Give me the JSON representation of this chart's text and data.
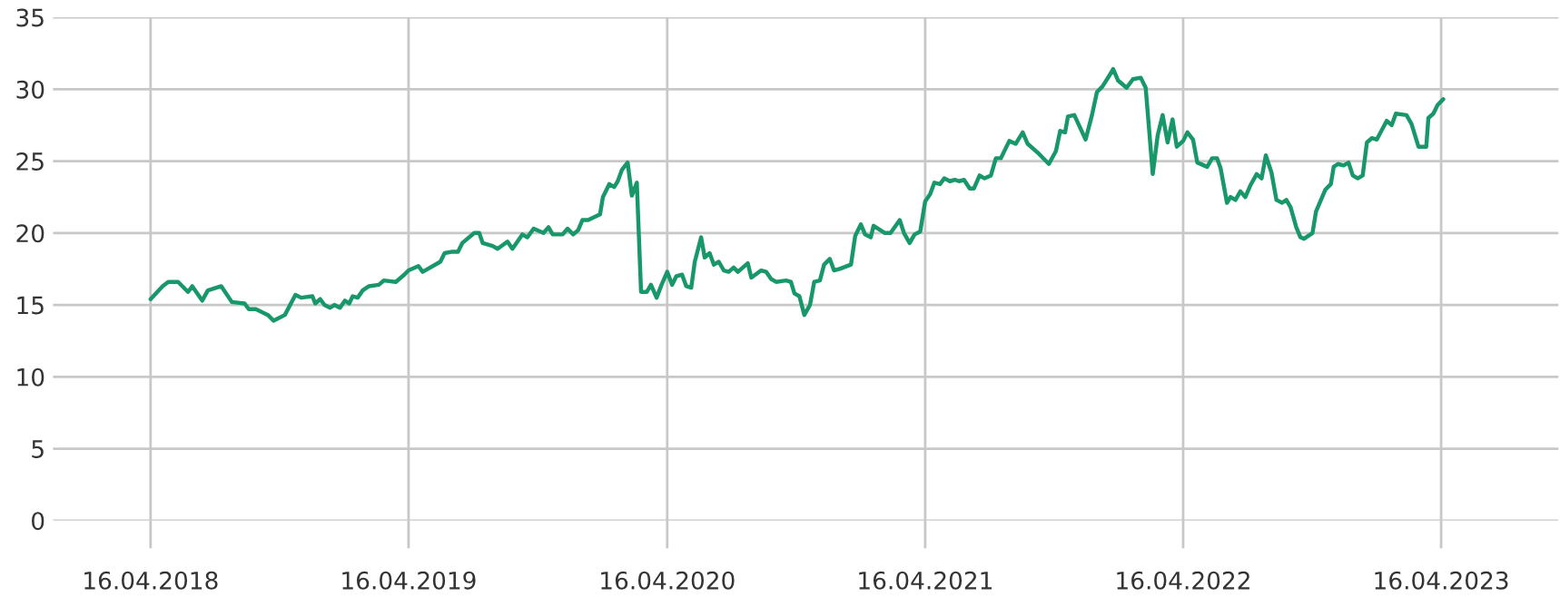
{
  "chart_data": {
    "type": "line",
    "x": [
      "2018-04-16",
      "2018-05-03",
      "2018-05-11",
      "2018-05-25",
      "2018-06-08",
      "2018-06-14",
      "2018-06-28",
      "2018-07-06",
      "2018-07-25",
      "2018-08-09",
      "2018-08-27",
      "2018-09-02",
      "2018-09-12",
      "2018-09-29",
      "2018-10-07",
      "2018-10-23",
      "2018-11-07",
      "2018-11-15",
      "2018-12-01",
      "2018-12-05",
      "2018-12-12",
      "2018-12-18",
      "2018-12-26",
      "2019-01-01",
      "2019-01-09",
      "2019-01-16",
      "2019-01-22",
      "2019-01-27",
      "2019-02-03",
      "2019-02-10",
      "2019-02-19",
      "2019-03-05",
      "2019-03-12",
      "2019-03-29",
      "2019-04-10",
      "2019-04-16",
      "2019-04-30",
      "2019-05-06",
      "2019-05-31",
      "2019-06-06",
      "2019-06-17",
      "2019-06-25",
      "2019-07-01",
      "2019-07-18",
      "2019-07-25",
      "2019-07-30",
      "2019-08-13",
      "2019-08-20",
      "2019-09-03",
      "2019-09-10",
      "2019-09-24",
      "2019-10-01",
      "2019-10-10",
      "2019-10-24",
      "2019-10-31",
      "2019-11-06",
      "2019-11-20",
      "2019-11-27",
      "2019-12-05",
      "2019-12-12",
      "2019-12-18",
      "2019-12-26",
      "2020-01-12",
      "2020-01-16",
      "2020-01-25",
      "2020-02-01",
      "2020-02-06",
      "2020-02-12",
      "2020-02-20",
      "2020-02-26",
      "2020-03-04",
      "2020-03-10",
      "2020-03-18",
      "2020-03-24",
      "2020-04-01",
      "2020-04-08",
      "2020-04-16",
      "2020-04-23",
      "2020-04-29",
      "2020-05-07",
      "2020-05-13",
      "2020-05-20",
      "2020-05-25",
      "2020-06-03",
      "2020-06-08",
      "2020-06-15",
      "2020-06-21",
      "2020-06-28",
      "2020-07-05",
      "2020-07-12",
      "2020-07-19",
      "2020-07-25",
      "2020-08-08",
      "2020-08-13",
      "2020-08-27",
      "2020-09-03",
      "2020-09-10",
      "2020-09-17",
      "2020-10-01",
      "2020-10-08",
      "2020-10-13",
      "2020-10-20",
      "2020-10-27",
      "2020-11-04",
      "2020-11-10",
      "2020-11-18",
      "2020-11-24",
      "2020-12-02",
      "2020-12-08",
      "2020-12-16",
      "2021-01-01",
      "2021-01-07",
      "2021-01-15",
      "2021-01-21",
      "2021-01-29",
      "2021-02-02",
      "2021-02-18",
      "2021-02-26",
      "2021-03-11",
      "2021-03-17",
      "2021-03-25",
      "2021-04-01",
      "2021-04-09",
      "2021-04-16",
      "2021-04-23",
      "2021-04-29",
      "2021-05-07",
      "2021-05-13",
      "2021-05-21",
      "2021-05-28",
      "2021-06-03",
      "2021-06-10",
      "2021-06-18",
      "2021-06-24",
      "2021-07-02",
      "2021-07-09",
      "2021-07-18",
      "2021-07-25",
      "2021-08-01",
      "2021-08-13",
      "2021-08-22",
      "2021-09-01",
      "2021-09-08",
      "2021-09-22",
      "2021-10-08",
      "2021-10-18",
      "2021-10-24",
      "2021-10-31",
      "2021-11-04",
      "2021-11-13",
      "2021-11-29",
      "2021-12-08",
      "2021-12-15",
      "2021-12-23",
      "2022-01-01",
      "2022-01-07",
      "2022-01-14",
      "2022-01-26",
      "2022-02-04",
      "2022-02-15",
      "2022-02-22",
      "2022-03-04",
      "2022-03-11",
      "2022-03-18",
      "2022-03-25",
      "2022-04-01",
      "2022-04-07",
      "2022-04-16",
      "2022-04-22",
      "2022-04-30",
      "2022-05-06",
      "2022-05-20",
      "2022-05-27",
      "2022-06-03",
      "2022-06-08",
      "2022-06-17",
      "2022-06-22",
      "2022-06-29",
      "2022-07-06",
      "2022-07-13",
      "2022-07-20",
      "2022-07-29",
      "2022-08-05",
      "2022-08-11",
      "2022-08-19",
      "2022-08-26",
      "2022-09-03",
      "2022-09-09",
      "2022-09-15",
      "2022-09-23",
      "2022-09-29",
      "2022-10-04",
      "2022-10-16",
      "2022-10-21",
      "2022-11-03",
      "2022-11-11",
      "2022-11-15",
      "2022-11-21",
      "2022-11-29",
      "2022-12-06",
      "2022-12-12",
      "2022-12-19",
      "2022-12-26",
      "2023-01-01",
      "2023-01-08",
      "2023-01-15",
      "2023-01-29",
      "2023-02-05",
      "2023-02-11",
      "2023-02-26",
      "2023-03-05",
      "2023-03-15",
      "2023-03-26",
      "2023-03-29",
      "2023-04-05",
      "2023-04-11",
      "2023-04-19"
    ],
    "series": [
      {
        "color": "#18986a",
        "values": [
          15.4,
          16.3,
          16.6,
          16.6,
          15.9,
          16.3,
          15.3,
          16.0,
          16.3,
          15.2,
          15.1,
          14.7,
          14.7,
          14.3,
          13.9,
          14.3,
          15.7,
          15.5,
          15.6,
          15.1,
          15.4,
          15.0,
          14.8,
          15.0,
          14.8,
          15.3,
          15.1,
          15.6,
          15.5,
          16.0,
          16.3,
          16.4,
          16.7,
          16.6,
          17.1,
          17.4,
          17.7,
          17.3,
          18.0,
          18.6,
          18.7,
          18.7,
          19.3,
          20.0,
          20.0,
          19.3,
          19.1,
          18.9,
          19.4,
          18.9,
          19.9,
          19.7,
          20.3,
          20.0,
          20.4,
          19.9,
          19.9,
          20.3,
          19.9,
          20.2,
          20.9,
          20.9,
          21.3,
          22.5,
          23.4,
          23.2,
          23.6,
          24.4,
          24.9,
          22.6,
          23.5,
          15.9,
          15.9,
          16.4,
          15.5,
          16.4,
          17.3,
          16.4,
          17.0,
          17.1,
          16.3,
          16.2,
          18.0,
          19.7,
          18.3,
          18.6,
          17.8,
          18.0,
          17.4,
          17.3,
          17.6,
          17.3,
          17.9,
          16.9,
          17.4,
          17.3,
          16.8,
          16.6,
          16.7,
          16.6,
          15.8,
          15.6,
          14.3,
          15.0,
          16.6,
          16.7,
          17.8,
          18.2,
          17.4,
          17.5,
          17.8,
          19.8,
          20.6,
          19.9,
          19.7,
          20.5,
          20.0,
          20.0,
          20.9,
          20.0,
          19.3,
          19.9,
          20.1,
          22.2,
          22.7,
          23.5,
          23.4,
          23.8,
          23.6,
          23.7,
          23.6,
          23.7,
          23.1,
          23.1,
          24.0,
          23.8,
          24.0,
          25.2,
          25.2,
          26.4,
          26.2,
          27.0,
          26.2,
          25.6,
          24.8,
          25.7,
          27.1,
          27.0,
          28.1,
          28.2,
          26.5,
          28.2,
          29.8,
          30.2,
          30.9,
          31.4,
          30.6,
          30.1,
          30.7,
          30.8,
          30.1,
          24.1,
          26.8,
          28.2,
          26.3,
          27.9,
          26.0,
          26.4,
          27.0,
          26.5,
          24.9,
          24.6,
          25.2,
          25.2,
          24.5,
          22.1,
          22.5,
          22.3,
          22.9,
          22.5,
          23.3,
          24.1,
          23.8,
          25.4,
          24.2,
          22.3,
          22.1,
          22.3,
          21.8,
          20.4,
          19.7,
          19.6,
          20.0,
          21.5,
          23.0,
          23.4,
          24.6,
          24.8,
          24.7,
          24.9,
          24.0,
          23.8,
          24.0,
          26.3,
          26.6,
          26.5,
          27.8,
          27.5,
          28.3,
          28.2,
          27.6,
          26.0,
          26.0,
          28.0,
          28.3,
          28.9,
          29.3
        ]
      }
    ],
    "xlim": [
      "2017-11-29",
      "2023-09-29"
    ],
    "xticks": [
      {
        "value": "2018-04-16",
        "label": "16.04.2018"
      },
      {
        "value": "2019-04-16",
        "label": "16.04.2019"
      },
      {
        "value": "2020-04-16",
        "label": "16.04.2020"
      },
      {
        "value": "2021-04-16",
        "label": "16.04.2021"
      },
      {
        "value": "2022-04-16",
        "label": "16.04.2022"
      },
      {
        "value": "2023-04-16",
        "label": "16.04.2023"
      }
    ],
    "ylim": [
      0,
      35
    ],
    "yticks": [
      0,
      5,
      10,
      15,
      20,
      25,
      30,
      35
    ],
    "grid": true,
    "line_style": "solid"
  }
}
